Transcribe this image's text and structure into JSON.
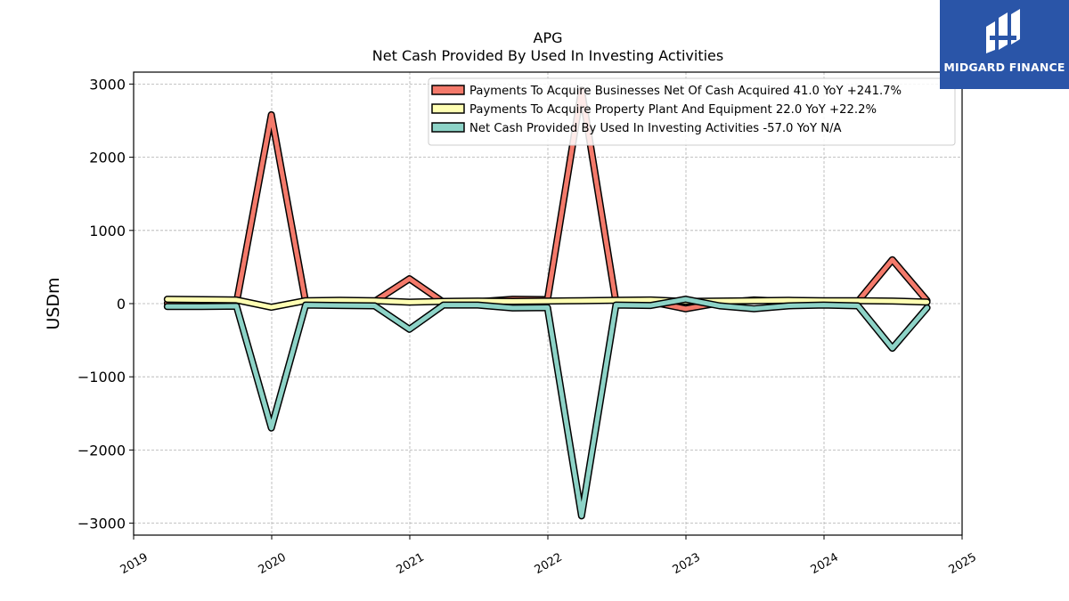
{
  "chart_data": {
    "type": "line",
    "title": "APG",
    "subtitle": "Net Cash Provided By Used In Investing Activities",
    "ylabel": "USDm",
    "xlabel": "",
    "ylim": [
      -3150,
      3150
    ],
    "xlim": [
      2019.0,
      2025.0
    ],
    "x_ticks": [
      "2019",
      "2020",
      "2021",
      "2022",
      "2023",
      "2024",
      "2025"
    ],
    "y_ticks": [
      3000,
      2000,
      1000,
      0,
      -1000,
      -2000,
      -3000
    ],
    "y_tick_labels": [
      "3000",
      "2000",
      "1000",
      "0",
      "−1000",
      "−2000",
      "−3000"
    ],
    "grid": true,
    "legend_position": "top-right",
    "x": [
      "2019-03-31",
      "2019-06-30",
      "2019-09-30",
      "2019-12-31",
      "2020-03-31",
      "2020-06-30",
      "2020-09-30",
      "2020-12-31",
      "2021-03-31",
      "2021-06-30",
      "2021-09-30",
      "2021-12-31",
      "2022-03-31",
      "2022-06-30",
      "2022-09-30",
      "2022-12-31",
      "2023-03-31",
      "2023-06-30",
      "2023-09-30",
      "2023-12-31",
      "2024-03-31",
      "2024-06-30",
      "2024-09-30"
    ],
    "series": [
      {
        "name": "Payments To Acquire Businesses Net Of Cash Acquired  41.0 YoY +241.7%",
        "color": "#f47a6b",
        "values": [
          5,
          10,
          15,
          2580,
          20,
          25,
          30,
          340,
          20,
          25,
          60,
          55,
          2920,
          20,
          25,
          -70,
          10,
          50,
          30,
          20,
          30,
          600,
          41
        ]
      },
      {
        "name": "Payments To Acquire Property Plant And Equipment  22.0 YoY +22.2%",
        "color": "#ffffb3",
        "values": [
          60,
          55,
          50,
          -50,
          40,
          45,
          40,
          20,
          30,
          35,
          30,
          35,
          40,
          45,
          50,
          30,
          35,
          40,
          45,
          40,
          40,
          35,
          22
        ]
      },
      {
        "name": "Net Cash Provided By Used In Investing Activities  -57.0 YoY N/A",
        "color": "#8dd3c7",
        "values": [
          -40,
          -40,
          -35,
          -1700,
          -20,
          -25,
          -30,
          -350,
          -20,
          -20,
          -60,
          -55,
          -2900,
          -20,
          -25,
          60,
          -30,
          -70,
          -30,
          -20,
          -30,
          -610,
          -57
        ]
      }
    ]
  },
  "watermark": {
    "brand": "MIDGARD FINANCE",
    "bg_color": "#2a55a8"
  }
}
